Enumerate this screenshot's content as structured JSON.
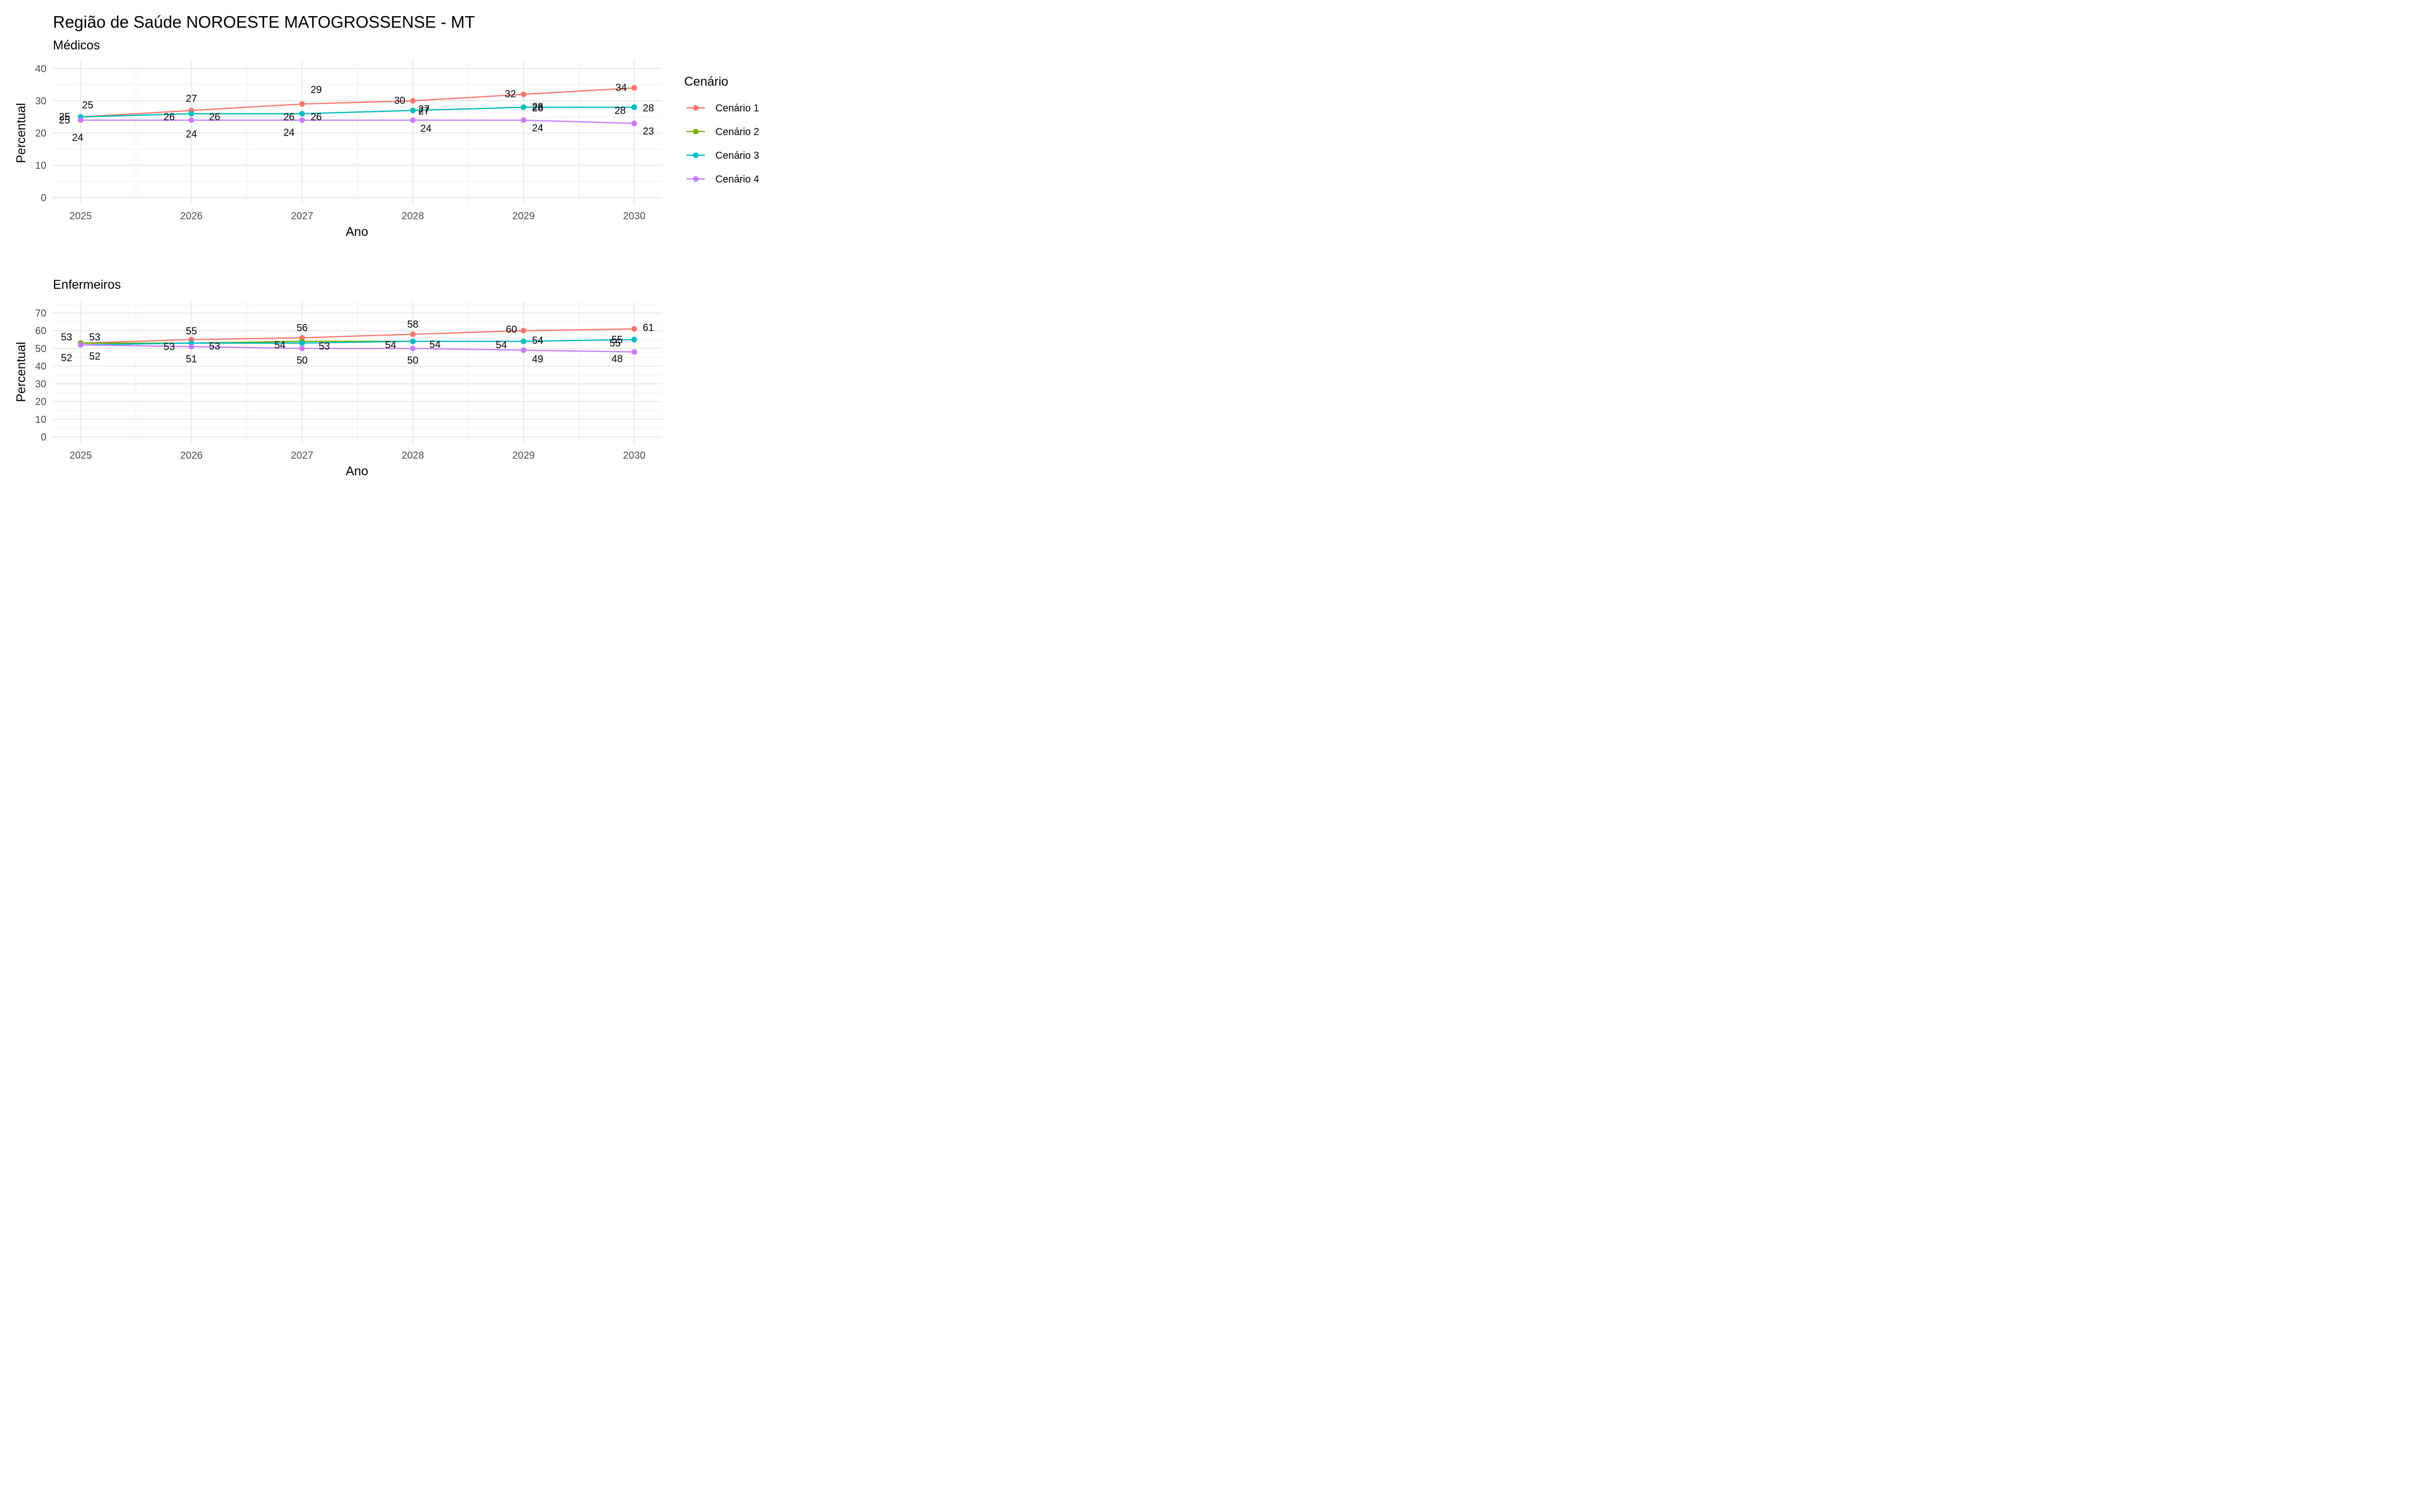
{
  "title": "Região de Saúde NOROESTE MATOGROSSENSE - MT",
  "legend": {
    "title": "Cenário",
    "entries": [
      {
        "name": "Cenário 1",
        "color": "#F8766D"
      },
      {
        "name": "Cenário 2",
        "color": "#7CAE00"
      },
      {
        "name": "Cenário 3",
        "color": "#00BFC4"
      },
      {
        "name": "Cenário 4",
        "color": "#C77CFF"
      }
    ],
    "placement": "right"
  },
  "chart_data": [
    {
      "type": "line",
      "subtitle": "Médicos",
      "xlabel": "Ano",
      "ylabel": "Percentual",
      "x": [
        2025,
        2026,
        2027,
        2028,
        2029,
        2030
      ],
      "x_tick_labels": [
        "2025",
        "2026",
        "2027",
        "2028",
        "2029",
        "2030"
      ],
      "ylim": [
        0,
        40
      ],
      "y_ticks": [
        0,
        10,
        20,
        30,
        40
      ],
      "y_tick_labels": [
        "0",
        "10",
        "20",
        "30",
        "40"
      ],
      "grid": true,
      "series": [
        {
          "name": "Cenário 1",
          "color": "#F8766D",
          "values": [
            25,
            27,
            29,
            30,
            32,
            34
          ],
          "labels": [
            "25",
            "27",
            "29",
            "30",
            "32",
            "34"
          ]
        },
        {
          "name": "Cenário 2",
          "color": "#7CAE00",
          "values": [
            25,
            26,
            26,
            27,
            28,
            28
          ],
          "labels": [
            "25",
            "26",
            "26",
            "27",
            "28",
            "28"
          ]
        },
        {
          "name": "Cenário 3",
          "color": "#00BFC4",
          "values": [
            25,
            26,
            26,
            27,
            28,
            28
          ],
          "labels": [
            "25",
            "26",
            "26",
            "27",
            "28",
            "28"
          ]
        },
        {
          "name": "Cenário 4",
          "color": "#C77CFF",
          "values": [
            24,
            24,
            24,
            24,
            24,
            23
          ],
          "labels": [
            "24",
            "24",
            "24",
            "24",
            "24",
            "23"
          ]
        }
      ]
    },
    {
      "type": "line",
      "subtitle": "Enfermeiros",
      "xlabel": "Ano",
      "ylabel": "Percentual",
      "x": [
        2025,
        2026,
        2027,
        2028,
        2029,
        2030
      ],
      "x_tick_labels": [
        "2025",
        "2026",
        "2027",
        "2028",
        "2029",
        "2030"
      ],
      "ylim": [
        0,
        70
      ],
      "y_ticks": [
        0,
        10,
        20,
        30,
        40,
        50,
        60,
        70
      ],
      "y_tick_labels": [
        "0",
        "10",
        "20",
        "30",
        "40",
        "50",
        "60",
        "70"
      ],
      "grid": true,
      "series": [
        {
          "name": "Cenário 1",
          "color": "#F8766D",
          "values": [
            53,
            55,
            56,
            58,
            60,
            61
          ],
          "labels": [
            "53",
            "55",
            "56",
            "58",
            "60",
            "61"
          ]
        },
        {
          "name": "Cenário 2",
          "color": "#7CAE00",
          "values": [
            53,
            53,
            54,
            54,
            54,
            55
          ],
          "labels": [
            "53",
            "53",
            "54",
            "54",
            "54",
            "55"
          ]
        },
        {
          "name": "Cenário 3",
          "color": "#00BFC4",
          "values": [
            52,
            53,
            53,
            54,
            54,
            55
          ],
          "labels": [
            "52",
            "53",
            "53",
            "54",
            "54",
            "55"
          ]
        },
        {
          "name": "Cenário 4",
          "color": "#C77CFF",
          "values": [
            52,
            51,
            50,
            50,
            49,
            48
          ],
          "labels": [
            "52",
            "51",
            "50",
            "50",
            "49",
            "48"
          ]
        }
      ]
    }
  ]
}
